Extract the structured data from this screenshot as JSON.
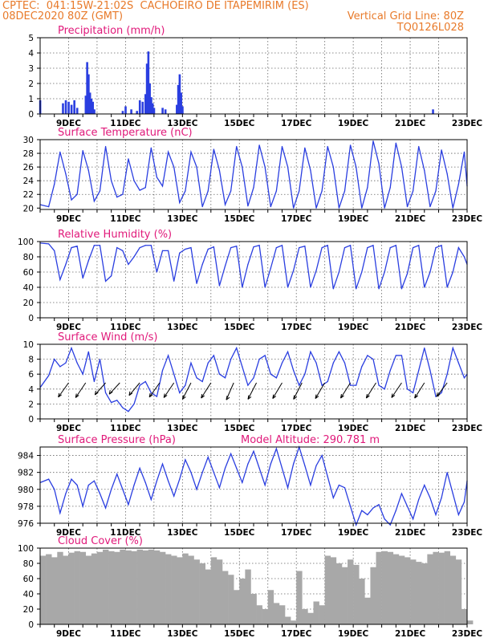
{
  "header": {
    "line1": "CPTEC:  041:15W-21:02S  CACHOEIRO DE ITAPEMIRIM (ES)",
    "line2_left": "08DEC2020 80Z (GMT)",
    "line2_right": "Vertical Grid Line: 80Z",
    "line3_right": "TQ0126L028"
  },
  "colors": {
    "header": "#e87a2a",
    "title": "#e0197a",
    "line": "#2a3ee0",
    "cloud": "#a8a8a8"
  },
  "x_ticks": [
    "9DEC",
    "11DEC",
    "13DEC",
    "15DEC",
    "17DEC",
    "19DEC",
    "21DEC",
    "23DEC"
  ],
  "panels": {
    "precipitation": {
      "title": "Precipitation (mm/h)",
      "yticks": [
        "0",
        "1",
        "2",
        "3",
        "4",
        "5"
      ]
    },
    "temperature": {
      "title": "Surface Temperature (nC)",
      "yticks": [
        "20",
        "22",
        "24",
        "26",
        "28",
        "30"
      ]
    },
    "humidity": {
      "title": "Relative Humidity (%)",
      "yticks": [
        "0",
        "20",
        "40",
        "60",
        "80",
        "100"
      ]
    },
    "wind": {
      "title": "Surface Wind (m/s)",
      "yticks": [
        "0",
        "2",
        "4",
        "6",
        "8",
        "10"
      ]
    },
    "pressure": {
      "title": "Surface Pressure (hPa)",
      "subtitle": "Model Altitude: 290.781 m",
      "yticks": [
        "976",
        "978",
        "980",
        "982",
        "984"
      ]
    },
    "cloud": {
      "title": "Cloud Cover (%)",
      "yticks": [
        "0",
        "20",
        "40",
        "60",
        "80",
        "100"
      ]
    }
  },
  "chart_data": [
    {
      "type": "bar",
      "title": "Precipitation (mm/h)",
      "ylim": [
        0,
        5
      ],
      "x_days": [
        8.0,
        8.8,
        8.9,
        9.0,
        9.1,
        9.2,
        9.3,
        9.6,
        9.65,
        9.7,
        9.75,
        9.8,
        9.85,
        9.9,
        10.9,
        11.0,
        11.2,
        11.4,
        11.5,
        11.6,
        11.7,
        11.75,
        11.8,
        11.85,
        11.9,
        11.95,
        12.0,
        12.3,
        12.4,
        12.8,
        12.85,
        12.9,
        12.95,
        13.0,
        21.8
      ],
      "values": [
        0.9,
        0.7,
        0.9,
        0.8,
        0.6,
        0.9,
        0.4,
        1.2,
        3.4,
        2.6,
        1.4,
        1.0,
        0.8,
        0.3,
        0.2,
        0.5,
        0.3,
        0.2,
        0.9,
        0.8,
        1.3,
        3.3,
        4.1,
        2.0,
        1.1,
        0.7,
        0.4,
        0.4,
        0.3,
        0.6,
        1.9,
        2.6,
        1.4,
        0.5,
        0.3
      ],
      "grid": true
    },
    {
      "type": "line",
      "title": "Surface Temperature (nC)",
      "ylim": [
        19.8,
        30
      ],
      "x": [
        8.0,
        8.3,
        8.5,
        8.7,
        8.9,
        9.1,
        9.3,
        9.5,
        9.7,
        9.9,
        10.1,
        10.3,
        10.5,
        10.7,
        10.9,
        11.1,
        11.3,
        11.5,
        11.7,
        11.9,
        12.1,
        12.3,
        12.5,
        12.7,
        12.9,
        13.1,
        13.3,
        13.5,
        13.7,
        13.9,
        14.1,
        14.3,
        14.5,
        14.7,
        14.9,
        15.1,
        15.3,
        15.5,
        15.7,
        15.9,
        16.1,
        16.3,
        16.5,
        16.7,
        16.9,
        17.1,
        17.3,
        17.5,
        17.7,
        17.9,
        18.1,
        18.3,
        18.5,
        18.7,
        18.9,
        19.1,
        19.3,
        19.5,
        19.7,
        19.9,
        20.1,
        20.3,
        20.5,
        20.7,
        20.9,
        21.1,
        21.3,
        21.5,
        21.7,
        21.9,
        22.1,
        22.3,
        22.5,
        22.7,
        22.9,
        23.0
      ],
      "values": [
        20.5,
        20.2,
        23.5,
        28.2,
        25.0,
        21.2,
        22.0,
        28.4,
        25.5,
        21.0,
        22.5,
        29.0,
        24.0,
        21.6,
        22.0,
        27.2,
        24.0,
        22.6,
        23.0,
        28.8,
        24.5,
        23.2,
        28.2,
        26.0,
        20.8,
        22.5,
        28.2,
        26.0,
        20.2,
        22.5,
        28.6,
        25.5,
        20.5,
        22.5,
        29.0,
        26.0,
        20.3,
        23.0,
        29.2,
        26.0,
        20.2,
        22.5,
        29.0,
        26.0,
        20.0,
        22.5,
        28.8,
        25.5,
        20.0,
        22.5,
        29.0,
        26.0,
        20.0,
        22.5,
        29.2,
        26.0,
        20.0,
        23.0,
        29.8,
        26.5,
        20.0,
        23.0,
        29.5,
        26.0,
        20.2,
        22.5,
        29.0,
        25.5,
        20.2,
        22.5,
        28.5,
        25.0,
        20.0,
        23.5,
        28.2,
        23.2
      ],
      "grid": true
    },
    {
      "type": "line",
      "title": "Relative Humidity (%)",
      "ylim": [
        0,
        100
      ],
      "x": [
        8.0,
        8.3,
        8.5,
        8.7,
        8.9,
        9.1,
        9.3,
        9.5,
        9.7,
        9.9,
        10.1,
        10.3,
        10.5,
        10.7,
        10.9,
        11.1,
        11.3,
        11.5,
        11.7,
        11.9,
        12.1,
        12.3,
        12.5,
        12.7,
        12.9,
        13.1,
        13.3,
        13.5,
        13.7,
        13.9,
        14.1,
        14.3,
        14.5,
        14.7,
        14.9,
        15.1,
        15.3,
        15.5,
        15.7,
        15.9,
        16.1,
        16.3,
        16.5,
        16.7,
        16.9,
        17.1,
        17.3,
        17.5,
        17.7,
        17.9,
        18.1,
        18.3,
        18.5,
        18.7,
        18.9,
        19.1,
        19.3,
        19.5,
        19.7,
        19.9,
        20.1,
        20.3,
        20.5,
        20.7,
        20.9,
        21.1,
        21.3,
        21.5,
        21.7,
        21.9,
        22.1,
        22.3,
        22.5,
        22.7,
        22.9,
        23.0
      ],
      "values": [
        98,
        97,
        88,
        50,
        70,
        92,
        94,
        52,
        75,
        95,
        95,
        48,
        55,
        92,
        88,
        70,
        80,
        92,
        95,
        95,
        60,
        88,
        88,
        48,
        85,
        90,
        92,
        45,
        70,
        90,
        93,
        42,
        68,
        92,
        94,
        40,
        70,
        93,
        95,
        40,
        65,
        92,
        95,
        40,
        62,
        92,
        94,
        40,
        62,
        92,
        95,
        38,
        60,
        92,
        95,
        38,
        60,
        92,
        95,
        38,
        60,
        92,
        95,
        38,
        58,
        92,
        95,
        40,
        60,
        92,
        95,
        40,
        60,
        92,
        80,
        70
      ],
      "grid": true
    },
    {
      "type": "line",
      "title": "Surface Wind (m/s)",
      "ylim": [
        0,
        10
      ],
      "x": [
        8.0,
        8.3,
        8.5,
        8.7,
        8.9,
        9.1,
        9.3,
        9.5,
        9.7,
        9.9,
        10.1,
        10.3,
        10.5,
        10.7,
        10.9,
        11.1,
        11.3,
        11.5,
        11.7,
        11.9,
        12.1,
        12.3,
        12.5,
        12.7,
        12.9,
        13.1,
        13.3,
        13.5,
        13.7,
        13.9,
        14.1,
        14.3,
        14.5,
        14.7,
        14.9,
        15.1,
        15.3,
        15.5,
        15.7,
        15.9,
        16.1,
        16.3,
        16.5,
        16.7,
        16.9,
        17.1,
        17.3,
        17.5,
        17.7,
        17.9,
        18.1,
        18.3,
        18.5,
        18.7,
        18.9,
        19.1,
        19.3,
        19.5,
        19.7,
        19.9,
        20.1,
        20.3,
        20.5,
        20.7,
        20.9,
        21.1,
        21.3,
        21.5,
        21.7,
        21.9,
        22.1,
        22.3,
        22.5,
        22.7,
        22.9,
        23.0
      ],
      "values": [
        4.2,
        5.8,
        8.0,
        7.0,
        7.5,
        9.5,
        7.5,
        6.0,
        9.0,
        5.0,
        8.0,
        3.5,
        2.2,
        2.5,
        1.5,
        1.0,
        2.0,
        4.5,
        5.0,
        3.5,
        3.0,
        6.5,
        8.5,
        6.0,
        3.5,
        4.5,
        7.5,
        5.5,
        5.0,
        7.5,
        8.5,
        6.0,
        5.5,
        8.0,
        9.5,
        7.0,
        4.5,
        5.5,
        8.0,
        8.5,
        6.0,
        5.5,
        7.5,
        9.0,
        6.5,
        4.5,
        6.0,
        9.0,
        7.5,
        4.5,
        5.0,
        7.5,
        9.0,
        7.5,
        4.5,
        4.5,
        7.0,
        8.5,
        8.0,
        4.5,
        4.0,
        6.5,
        8.5,
        8.5,
        4.0,
        3.5,
        6.5,
        9.5,
        6.5,
        3.0,
        3.5,
        6.0,
        9.5,
        7.5,
        5.5,
        6.0
      ],
      "grid": true
    },
    {
      "type": "line",
      "title": "Surface Pressure (hPa)",
      "ylim": [
        976,
        985
      ],
      "x": [
        8.0,
        8.3,
        8.5,
        8.7,
        8.9,
        9.1,
        9.3,
        9.5,
        9.7,
        9.9,
        10.1,
        10.3,
        10.5,
        10.7,
        10.9,
        11.1,
        11.3,
        11.5,
        11.7,
        11.9,
        12.1,
        12.3,
        12.5,
        12.7,
        12.9,
        13.1,
        13.3,
        13.5,
        13.7,
        13.9,
        14.1,
        14.3,
        14.5,
        14.7,
        14.9,
        15.1,
        15.3,
        15.5,
        15.7,
        15.9,
        16.1,
        16.3,
        16.5,
        16.7,
        16.9,
        17.1,
        17.3,
        17.5,
        17.7,
        17.9,
        18.1,
        18.3,
        18.5,
        18.7,
        18.9,
        19.1,
        19.3,
        19.5,
        19.7,
        19.9,
        20.1,
        20.3,
        20.5,
        20.7,
        20.9,
        21.1,
        21.3,
        21.5,
        21.7,
        21.9,
        22.1,
        22.3,
        22.5,
        22.7,
        22.9,
        23.0
      ],
      "values": [
        980.8,
        981.2,
        980.0,
        977.2,
        979.5,
        981.2,
        980.5,
        978.0,
        980.5,
        981.0,
        979.5,
        977.8,
        980.0,
        981.8,
        980.0,
        978.2,
        980.5,
        982.5,
        980.8,
        978.8,
        981.0,
        983.0,
        981.0,
        979.2,
        981.2,
        983.5,
        982.0,
        980.0,
        982.0,
        983.8,
        982.0,
        980.2,
        982.5,
        984.2,
        982.5,
        980.8,
        983.0,
        984.5,
        982.5,
        980.5,
        983.0,
        984.8,
        982.5,
        980.2,
        983.0,
        985.0,
        982.8,
        980.5,
        982.8,
        984.0,
        981.5,
        979.0,
        980.5,
        980.2,
        978.0,
        975.8,
        977.5,
        977.0,
        977.8,
        978.2,
        976.5,
        975.8,
        977.5,
        979.5,
        978.0,
        976.5,
        978.8,
        980.5,
        979.0,
        977.0,
        979.0,
        982.0,
        979.5,
        977.0,
        978.5,
        981.0
      ],
      "grid": true
    },
    {
      "type": "area",
      "title": "Cloud Cover (%)",
      "ylim": [
        0,
        100
      ],
      "x": [
        8.0,
        8.2,
        8.4,
        8.6,
        8.8,
        9.0,
        9.2,
        9.4,
        9.6,
        9.8,
        10.0,
        10.2,
        10.4,
        10.6,
        10.8,
        11.0,
        11.2,
        11.4,
        11.6,
        11.8,
        12.0,
        12.2,
        12.4,
        12.6,
        12.8,
        13.0,
        13.2,
        13.4,
        13.6,
        13.8,
        14.0,
        14.2,
        14.4,
        14.6,
        14.8,
        15.0,
        15.2,
        15.4,
        15.6,
        15.8,
        16.0,
        16.2,
        16.4,
        16.6,
        16.8,
        17.0,
        17.2,
        17.4,
        17.6,
        17.8,
        18.0,
        18.2,
        18.4,
        18.6,
        18.8,
        19.0,
        19.2,
        19.4,
        19.6,
        19.8,
        20.0,
        20.2,
        20.4,
        20.6,
        20.8,
        21.0,
        21.2,
        21.4,
        21.6,
        21.8,
        22.0,
        22.2,
        22.4,
        22.6,
        22.8,
        23.0
      ],
      "values": [
        90,
        92,
        88,
        95,
        90,
        94,
        96,
        95,
        90,
        93,
        95,
        98,
        96,
        95,
        98,
        97,
        96,
        98,
        97,
        98,
        97,
        95,
        92,
        90,
        88,
        93,
        90,
        85,
        80,
        72,
        88,
        85,
        70,
        65,
        45,
        60,
        72,
        40,
        25,
        20,
        45,
        28,
        25,
        10,
        5,
        70,
        20,
        15,
        30,
        25,
        90,
        88,
        80,
        75,
        85,
        78,
        60,
        35,
        75,
        95,
        96,
        95,
        92,
        90,
        88,
        85,
        82,
        80,
        92,
        95,
        94,
        96,
        90,
        85,
        20,
        5
      ],
      "grid": true
    }
  ]
}
